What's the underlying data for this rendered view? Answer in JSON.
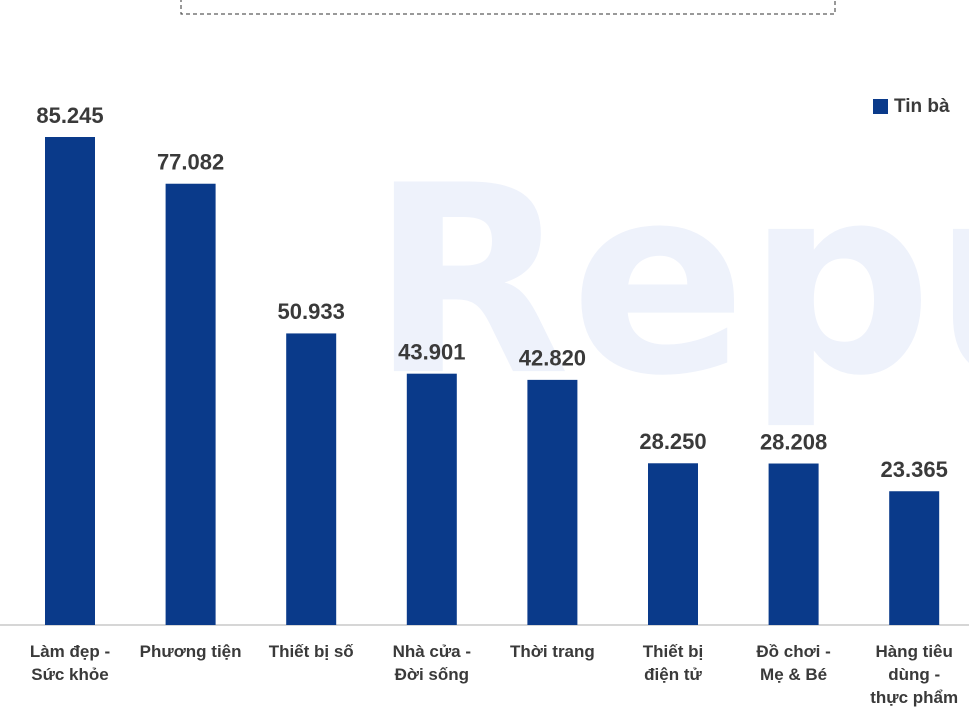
{
  "chart_data": {
    "type": "bar",
    "watermark": "Repu",
    "categories": [
      "Làm đẹp - Sức khỏe",
      "Phương tiện",
      "Thiết bị số",
      "Nhà cửa - Đời sống",
      "Thời trang",
      "Thiết bị điện tử",
      "Đồ chơi - Mẹ & Bé",
      "Hàng tiêu dùng - thực phẩm"
    ],
    "series": [
      {
        "name": "Tin bà",
        "color": "#0a3a8a",
        "values": [
          85245,
          77082,
          50933,
          43901,
          42820,
          28250,
          28208,
          23365
        ],
        "value_labels": [
          "85.245",
          "77.082",
          "50.933",
          "43.901",
          "42.820",
          "28.250",
          "28.208",
          "23.365"
        ]
      }
    ],
    "legend": "top-right"
  }
}
